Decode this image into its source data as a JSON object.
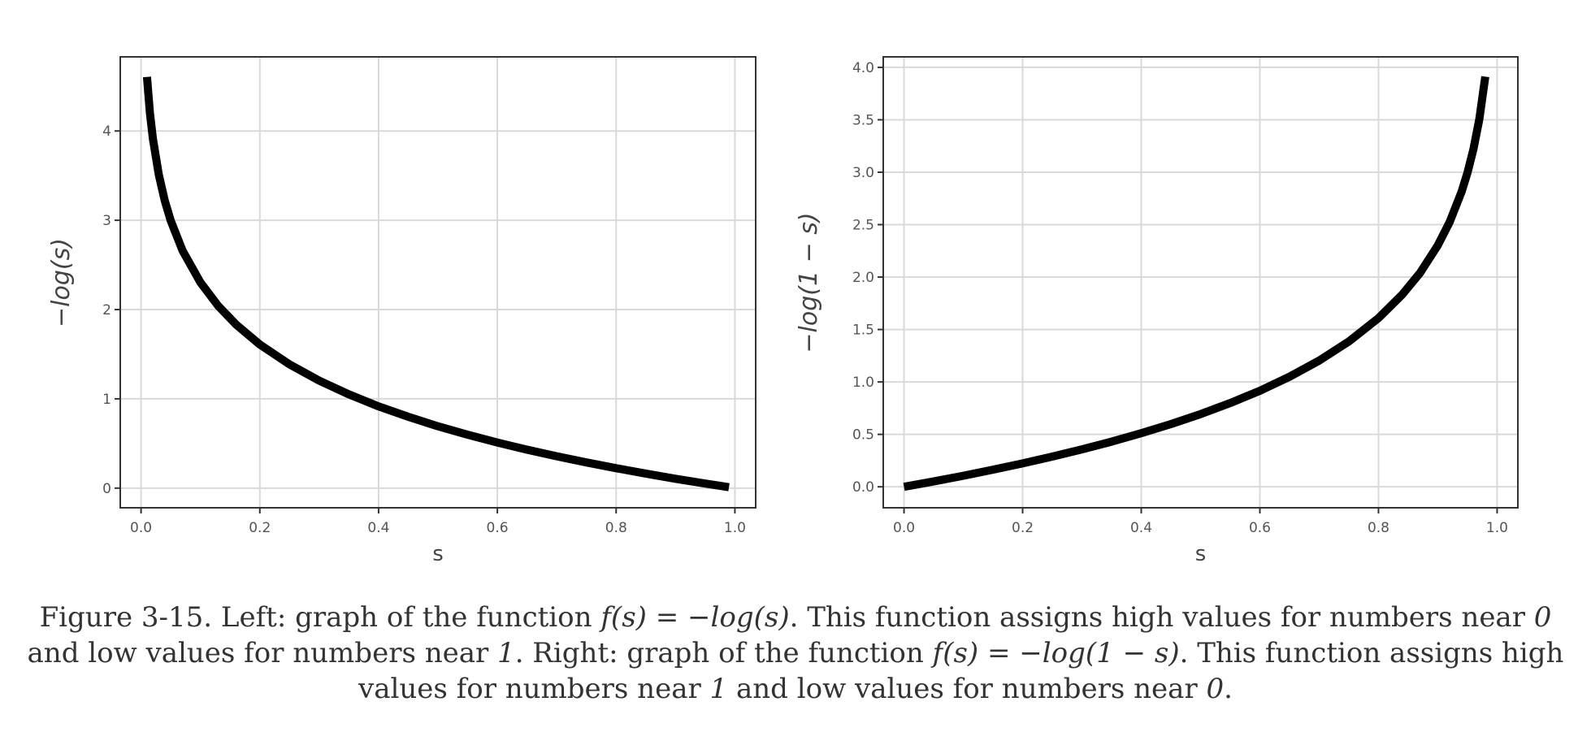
{
  "chart_data": [
    {
      "type": "line",
      "id": "left",
      "function": "-log(s)",
      "xlabel": "s",
      "ylabel": "−log(s)",
      "xlim": [
        -0.035,
        1.035
      ],
      "ylim": [
        -0.22,
        4.83
      ],
      "xticks": [
        0.0,
        0.2,
        0.4,
        0.6,
        0.8,
        1.0
      ],
      "xtick_labels": [
        "0.0",
        "0.2",
        "0.4",
        "0.6",
        "0.8",
        "1.0"
      ],
      "yticks": [
        0,
        1,
        2,
        3,
        4
      ],
      "ytick_labels": [
        "0",
        "1",
        "2",
        "3",
        "4"
      ],
      "grid": true,
      "series": [
        {
          "x": [
            0.01,
            0.015,
            0.02,
            0.03,
            0.04,
            0.05,
            0.07,
            0.1,
            0.13,
            0.16,
            0.2,
            0.25,
            0.3,
            0.35,
            0.4,
            0.45,
            0.5,
            0.55,
            0.6,
            0.65,
            0.7,
            0.75,
            0.8,
            0.85,
            0.9,
            0.95,
            0.99
          ],
          "y": [
            4.605,
            4.2,
            3.912,
            3.507,
            3.219,
            2.996,
            2.659,
            2.303,
            2.04,
            1.833,
            1.609,
            1.386,
            1.204,
            1.05,
            0.916,
            0.799,
            0.693,
            0.598,
            0.511,
            0.431,
            0.357,
            0.288,
            0.223,
            0.163,
            0.105,
            0.051,
            0.01
          ],
          "color": "#000000"
        }
      ]
    },
    {
      "type": "line",
      "id": "right",
      "function": "-log(1-s)",
      "xlabel": "s",
      "ylabel": "−log(1 − s)",
      "xlim": [
        -0.035,
        1.035
      ],
      "ylim": [
        -0.2,
        4.1
      ],
      "xticks": [
        0.0,
        0.2,
        0.4,
        0.6,
        0.8,
        1.0
      ],
      "xtick_labels": [
        "0.0",
        "0.2",
        "0.4",
        "0.6",
        "0.8",
        "1.0"
      ],
      "yticks": [
        0.0,
        0.5,
        1.0,
        1.5,
        2.0,
        2.5,
        3.0,
        3.5,
        4.0
      ],
      "ytick_labels": [
        "0.0",
        "0.5",
        "1.0",
        "1.5",
        "2.0",
        "2.5",
        "3.0",
        "3.5",
        "4.0"
      ],
      "grid": true,
      "series": [
        {
          "x": [
            0.0,
            0.05,
            0.1,
            0.15,
            0.2,
            0.25,
            0.3,
            0.35,
            0.4,
            0.45,
            0.5,
            0.55,
            0.6,
            0.65,
            0.7,
            0.75,
            0.8,
            0.84,
            0.87,
            0.9,
            0.92,
            0.94,
            0.95,
            0.96,
            0.97,
            0.98
          ],
          "y": [
            0.0,
            0.051,
            0.105,
            0.163,
            0.223,
            0.288,
            0.357,
            0.431,
            0.511,
            0.598,
            0.693,
            0.799,
            0.916,
            1.05,
            1.204,
            1.386,
            1.609,
            1.833,
            2.04,
            2.303,
            2.526,
            2.813,
            2.996,
            3.219,
            3.507,
            3.912
          ],
          "color": "#000000"
        }
      ]
    }
  ],
  "caption": {
    "p1": "Figure 3-15. Left: graph of the function ",
    "m1": "f(s) = −log(s)",
    "p2": ". This function assigns high values for numbers near ",
    "i1": "0",
    "p3": " and low values for numbers near ",
    "i2": "1",
    "p4": ". Right: graph of the function ",
    "m2": "f(s) = −log(1 − s)",
    "p5": ". This function assigns high values for numbers near ",
    "i3": "1",
    "p6": " and low values for numbers near ",
    "i4": "0",
    "p7": "."
  }
}
